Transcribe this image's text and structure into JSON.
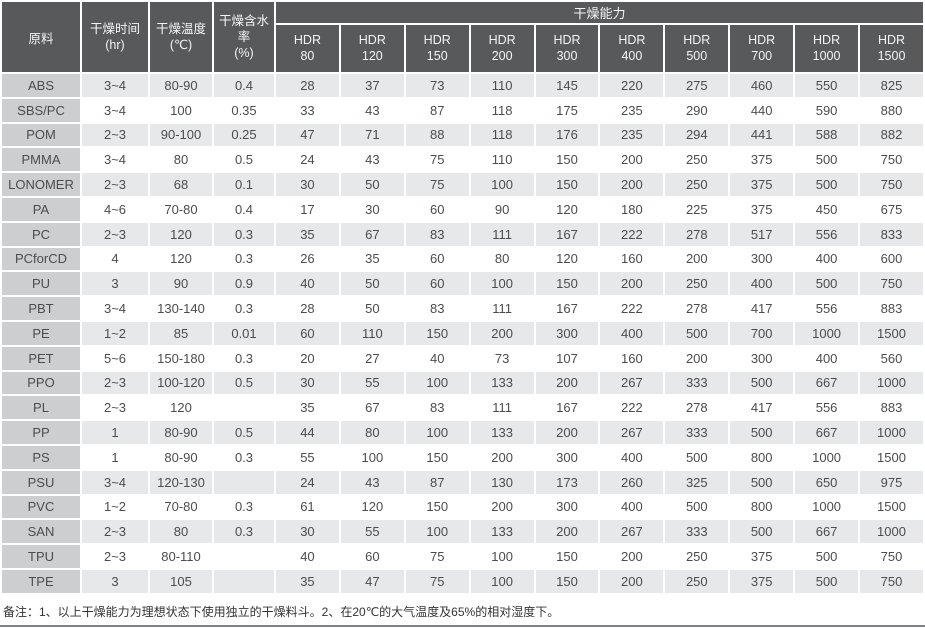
{
  "colors": {
    "header_bg": "#58595b",
    "header_text": "#f4f4f4",
    "label_cell_bg": "#ccced0",
    "row_odd_bg": "#e7e8ea",
    "row_even_bg": "#ffffff",
    "grid": "#ffffff",
    "body_text": "#4b4c4e"
  },
  "header": {
    "material": "原料",
    "time_label": "干燥时间",
    "time_unit": "(hr)",
    "temp_label": "干燥温度",
    "temp_unit": "(℃)",
    "moisture_label": "干燥含水率",
    "moisture_unit": "(%)",
    "capacity_banner": "干燥能力",
    "hdr_prefix": "HDR",
    "hdr_sizes": [
      "80",
      "120",
      "150",
      "200",
      "300",
      "400",
      "500",
      "700",
      "1000",
      "1500"
    ]
  },
  "rows": [
    {
      "material": "ABS",
      "time": "3~4",
      "temp": "80-90",
      "moisture": "0.4",
      "capacity": [
        "28",
        "37",
        "73",
        "110",
        "145",
        "220",
        "275",
        "460",
        "550",
        "825"
      ]
    },
    {
      "material": "SBS/PC",
      "time": "3~4",
      "temp": "100",
      "moisture": "0.35",
      "capacity": [
        "33",
        "43",
        "87",
        "118",
        "175",
        "235",
        "290",
        "440",
        "590",
        "880"
      ]
    },
    {
      "material": "POM",
      "time": "2~3",
      "temp": "90-100",
      "moisture": "0.25",
      "capacity": [
        "47",
        "71",
        "88",
        "118",
        "176",
        "235",
        "294",
        "441",
        "588",
        "882"
      ]
    },
    {
      "material": "PMMA",
      "time": "3~4",
      "temp": "80",
      "moisture": "0.5",
      "capacity": [
        "24",
        "43",
        "75",
        "110",
        "150",
        "200",
        "250",
        "375",
        "500",
        "750"
      ]
    },
    {
      "material": "LONOMER",
      "time": "2~3",
      "temp": "68",
      "moisture": "0.1",
      "capacity": [
        "30",
        "50",
        "75",
        "100",
        "150",
        "200",
        "250",
        "375",
        "500",
        "750"
      ]
    },
    {
      "material": "PA",
      "time": "4~6",
      "temp": "70-80",
      "moisture": "0.4",
      "capacity": [
        "17",
        "30",
        "60",
        "90",
        "120",
        "180",
        "225",
        "375",
        "450",
        "675"
      ]
    },
    {
      "material": "PC",
      "time": "2~3",
      "temp": "120",
      "moisture": "0.3",
      "capacity": [
        "35",
        "67",
        "83",
        "111",
        "167",
        "222",
        "278",
        "517",
        "556",
        "833"
      ]
    },
    {
      "material": "PCforCD",
      "time": "4",
      "temp": "120",
      "moisture": "0.3",
      "capacity": [
        "26",
        "35",
        "60",
        "80",
        "120",
        "160",
        "200",
        "300",
        "400",
        "600"
      ]
    },
    {
      "material": "PU",
      "time": "3",
      "temp": "90",
      "moisture": "0.9",
      "capacity": [
        "40",
        "50",
        "60",
        "100",
        "150",
        "200",
        "250",
        "400",
        "500",
        "750"
      ]
    },
    {
      "material": "PBT",
      "time": "3~4",
      "temp": "130-140",
      "moisture": "0.3",
      "capacity": [
        "28",
        "50",
        "83",
        "111",
        "167",
        "222",
        "278",
        "417",
        "556",
        "883"
      ]
    },
    {
      "material": "PE",
      "time": "1~2",
      "temp": "85",
      "moisture": "0.01",
      "capacity": [
        "60",
        "110",
        "150",
        "200",
        "300",
        "400",
        "500",
        "700",
        "1000",
        "1500"
      ]
    },
    {
      "material": "PET",
      "time": "5~6",
      "temp": "150-180",
      "moisture": "0.3",
      "capacity": [
        "20",
        "27",
        "40",
        "73",
        "107",
        "160",
        "200",
        "300",
        "400",
        "560"
      ]
    },
    {
      "material": "PPO",
      "time": "2~3",
      "temp": "100-120",
      "moisture": "0.5",
      "capacity": [
        "30",
        "55",
        "100",
        "133",
        "200",
        "267",
        "333",
        "500",
        "667",
        "1000"
      ]
    },
    {
      "material": "PL",
      "time": "2~3",
      "temp": "120",
      "moisture": "",
      "capacity": [
        "35",
        "67",
        "83",
        "111",
        "167",
        "222",
        "278",
        "417",
        "556",
        "883"
      ]
    },
    {
      "material": "PP",
      "time": "1",
      "temp": "80-90",
      "moisture": "0.5",
      "capacity": [
        "44",
        "80",
        "100",
        "133",
        "200",
        "267",
        "333",
        "500",
        "667",
        "1000"
      ]
    },
    {
      "material": "PS",
      "time": "1",
      "temp": "80-90",
      "moisture": "0.3",
      "capacity": [
        "55",
        "100",
        "150",
        "200",
        "300",
        "400",
        "500",
        "800",
        "1000",
        "1500"
      ]
    },
    {
      "material": "PSU",
      "time": "3~4",
      "temp": "120-130",
      "moisture": "",
      "capacity": [
        "24",
        "43",
        "87",
        "130",
        "173",
        "260",
        "325",
        "500",
        "650",
        "975"
      ]
    },
    {
      "material": "PVC",
      "time": "1~2",
      "temp": "70-80",
      "moisture": "0.3",
      "capacity": [
        "61",
        "120",
        "150",
        "200",
        "300",
        "400",
        "500",
        "800",
        "1000",
        "1500"
      ]
    },
    {
      "material": "SAN",
      "time": "2~3",
      "temp": "80",
      "moisture": "0.3",
      "capacity": [
        "30",
        "55",
        "100",
        "133",
        "200",
        "267",
        "333",
        "500",
        "667",
        "1000"
      ]
    },
    {
      "material": "TPU",
      "time": "2~3",
      "temp": "80-110",
      "moisture": "",
      "capacity": [
        "40",
        "60",
        "75",
        "100",
        "150",
        "200",
        "250",
        "375",
        "500",
        "750"
      ]
    },
    {
      "material": "TPE",
      "time": "3",
      "temp": "105",
      "moisture": "",
      "capacity": [
        "35",
        "47",
        "75",
        "100",
        "150",
        "200",
        "250",
        "375",
        "500",
        "750"
      ]
    }
  ],
  "footnote": "备注：1、以上干燥能力为理想状态下使用独立的干燥料斗。2、在20℃的大气温度及65%的相对湿度下。"
}
